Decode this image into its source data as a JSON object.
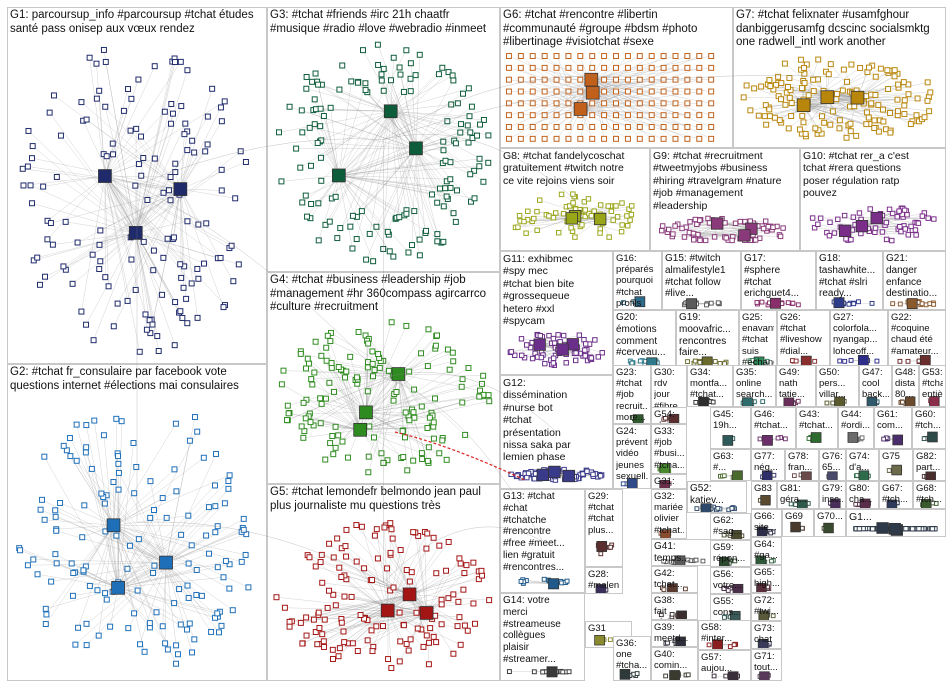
{
  "groups": [
    {
      "id": "G1",
      "label": "G1: parcoursup_info #parcoursup #tchat études\nsanté pass onisep aux vœux rendez",
      "color": "#1f2a6b",
      "kind": "hub"
    },
    {
      "id": "G2",
      "label": "G2: #tchat fr_consulaire par facebook vote\nquestions internet #élections mai consulaires",
      "color": "#1e6fb8",
      "kind": "hub"
    },
    {
      "id": "G3",
      "label": "G3: #tchat #friends #irc 21h chaatfr\n#musique #radio #love #webradio #inmeet",
      "color": "#0d5c3a",
      "kind": "ring"
    },
    {
      "id": "G4",
      "label": "G4: #tchat #business #leadership #job\n#management #hr 360compass agircarrco\n#culture #recruitment",
      "color": "#2e8b1f",
      "kind": "cluster"
    },
    {
      "id": "G5",
      "label": "G5: #tchat lemondefr belmondo jean paul\nplus journaliste mu questions très",
      "color": "#a31515",
      "kind": "hub"
    },
    {
      "id": "G6",
      "label": "G6: #tchat #rencontre #libertin\n#communauté #groupe #bdsm #photo\n#libertinage #visiotchat #sexe",
      "color": "#c0601a",
      "kind": "grid"
    },
    {
      "id": "G7",
      "label": "G7: #tchat felixnater #usamfghour\ndanbiggerusamfg dcscinc socialsmktg\none radwell_intl work another",
      "color": "#b8860b",
      "kind": "hub"
    },
    {
      "id": "G8",
      "label": "G8: #tchat fandelycoschat\ngratuitement #twitch notre\nce vite rejoins viens soir",
      "color": "#9aa61a",
      "kind": "hub"
    },
    {
      "id": "G9",
      "label": "G9: #tchat #recruitment\n#tweetmyjobs #business\n#hiring #travelgram #nature\n#job #management\n#leadership",
      "color": "#8a3a7a",
      "kind": "ring"
    },
    {
      "id": "G10",
      "label": "G10: #tchat rer_a c'est\ntchat #rera questions\nposer régulation ratp\npouvez",
      "color": "#7a2e8a",
      "kind": "hub"
    },
    {
      "id": "G11",
      "label": "G11: exhibmec\n#spy mec\n#tchat bien bite\n#grossequeue\nhetero #xxl\n#spycam",
      "color": "#6b2e8a",
      "kind": "cluster"
    },
    {
      "id": "G16",
      "label": "G16: préparés\npourquoi\n#tchat profils\nle_cidj...",
      "color": "#2e6b8a",
      "kind": "small"
    },
    {
      "id": "G15",
      "label": "G15: #twitch\nalmalifestyle1\n#tchat follow\n#live...",
      "color": "#5a5a5a",
      "kind": "small"
    },
    {
      "id": "G17",
      "label": "G17:\n#sphere\n#tchat\nerichguet4...",
      "color": "#8a2e6b",
      "kind": "small"
    },
    {
      "id": "G18",
      "label": "G18:\ntashawhite...\n#tchat #slri\nready...",
      "color": "#2e3a8a",
      "kind": "small"
    },
    {
      "id": "G21",
      "label": "G21:\ndanger\nenfance\ndestinatio...",
      "color": "#8a5a2e",
      "kind": "small"
    },
    {
      "id": "G20",
      "label": "G20:\némotions\ncomment\n#cerveau...",
      "color": "#2e7a8a",
      "kind": "small"
    },
    {
      "id": "G19",
      "label": "G19:\nmoovafric...\nrencontres\nfaire...",
      "color": "#6b6b2e",
      "kind": "small"
    },
    {
      "id": "G25",
      "label": "G25:\nenavantt...\n#tchat suis\n#échange...",
      "color": "#2e8a5a",
      "kind": "small"
    },
    {
      "id": "G26",
      "label": "G26:\n#tchat\n#liveshow\n#dial...",
      "color": "#8a2e2e",
      "kind": "small"
    },
    {
      "id": "G27",
      "label": "G27:\ncolorfola...\nnyangap...\nlohceoff...",
      "color": "#2e2e8a",
      "kind": "small"
    },
    {
      "id": "G22",
      "label": "G22:\n#coquine\nchaud été\n#amateur...",
      "color": "#6b2e2e",
      "kind": "small"
    },
    {
      "id": "G12",
      "label": "G12:\ndissémination\n#nurse bot\n#tchat\nprésentation\nnissa saka par\nlemien phase",
      "color": "#3a3a8a",
      "kind": "small"
    },
    {
      "id": "G23",
      "label": "G23:\n#tchat\n#job\nrecruit...\nmore...",
      "color": "#2e5a2e",
      "kind": "tiny"
    },
    {
      "id": "G30",
      "label": "G30:\nrdv\njour\n#fibre...",
      "color": "#5a2e8a",
      "kind": "tiny"
    },
    {
      "id": "G34",
      "label": "G34:\nmontfa...\n#tchat...",
      "color": "#2e2e2e",
      "kind": "tiny"
    },
    {
      "id": "G35",
      "label": "G35:\nonline\nsearch...",
      "color": "#2e6b6b",
      "kind": "tiny"
    },
    {
      "id": "G49",
      "label": "G49:\nnath\ntatie...",
      "color": "#6b2e5a",
      "kind": "tiny"
    },
    {
      "id": "G50",
      "label": "G50:\npers...\nvillar...",
      "color": "#5a5a2e",
      "kind": "tiny"
    },
    {
      "id": "G47",
      "label": "G47:\ncool\nback...",
      "color": "#2e5a6b",
      "kind": "tiny"
    },
    {
      "id": "G48",
      "label": "G48:\ndista...\n80...",
      "color": "#6b4a2e",
      "kind": "tiny"
    },
    {
      "id": "G53",
      "label": "G53:\n#tchat\nentiè...",
      "color": "#8a2e4a",
      "kind": "tiny"
    },
    {
      "id": "G24",
      "label": "G24:\nprévent...\nvidéo\njeunes\nsexuell...",
      "color": "#2e4a8a",
      "kind": "tiny"
    },
    {
      "id": "G33",
      "label": "G33:\n#job\n#busi...\n#tcha...",
      "color": "#4a8a2e",
      "kind": "tiny"
    },
    {
      "id": "G54",
      "label": "G54:\nn'ai...",
      "color": "#5a2e2e",
      "kind": "tiny"
    },
    {
      "id": "G45",
      "label": "G45:\n19h...",
      "color": "#2e5a5a",
      "kind": "tiny"
    },
    {
      "id": "G46",
      "label": "G46:\n#tchat...",
      "color": "#6b2e6b",
      "kind": "tiny"
    },
    {
      "id": "G43",
      "label": "G43:\n#tchat...",
      "color": "#2e6b2e",
      "kind": "tiny"
    },
    {
      "id": "G44",
      "label": "G44:\n#ordi...",
      "color": "#6b6b6b",
      "kind": "tiny"
    },
    {
      "id": "G61",
      "label": "G61:\ncom...",
      "color": "#4a2e6b",
      "kind": "tiny"
    },
    {
      "id": "G60",
      "label": "G60:\n#tch...",
      "color": "#2e4a4a",
      "kind": "tiny"
    },
    {
      "id": "G31a",
      "label": "G31:\n#bina...",
      "color": "#6b2e4a",
      "kind": "tiny"
    },
    {
      "id": "G63",
      "label": "G63:\n#...",
      "color": "#4a6b2e",
      "kind": "tiny"
    },
    {
      "id": "G77",
      "label": "G77:\nnég...",
      "color": "#2e2e6b",
      "kind": "tiny"
    },
    {
      "id": "G78",
      "label": "G78:\nfran...",
      "color": "#6b4a4a",
      "kind": "tiny"
    },
    {
      "id": "G76",
      "label": "G76:\n65...",
      "color": "#4a4a6b",
      "kind": "tiny"
    },
    {
      "id": "G74",
      "label": "G74:\nd'a...",
      "color": "#2e6b4a",
      "kind": "tiny"
    },
    {
      "id": "G75",
      "label": "G75",
      "color": "#6b6b4a",
      "kind": "tiny"
    },
    {
      "id": "G82",
      "label": "G82:\npart...",
      "color": "#4a2e2e",
      "kind": "tiny"
    },
    {
      "id": "G32",
      "label": "G32:\nmariée\nolivier\n#tchat...",
      "color": "#8a4a2e",
      "kind": "tiny"
    },
    {
      "id": "G52",
      "label": "G52:\nkatiev...",
      "color": "#2e4a6b",
      "kind": "tiny"
    },
    {
      "id": "G83",
      "label": "G83",
      "color": "#5a4a2e",
      "kind": "tiny"
    },
    {
      "id": "G81",
      "label": "G81:\ngéra...",
      "color": "#2e5a4a",
      "kind": "tiny"
    },
    {
      "id": "G79",
      "label": "G79:\ninsc...",
      "color": "#4a2e5a",
      "kind": "tiny"
    },
    {
      "id": "G80",
      "label": "G80:\ncha...",
      "color": "#5a2e4a",
      "kind": "tiny"
    },
    {
      "id": "G67",
      "label": "G67:\n#tch...",
      "color": "#2e3a5a",
      "kind": "tiny"
    },
    {
      "id": "G68",
      "label": "G68:\n#tch...",
      "color": "#3a5a2e",
      "kind": "tiny"
    },
    {
      "id": "G13",
      "label": "G13: #tchat\n#chat\n#tchatche\n#rencontre\n#free #meet...\nlien #gratuit\n#rencontres...",
      "color": "#1f5a8a",
      "kind": "small"
    },
    {
      "id": "G29",
      "label": "G29:\n#tchat\n#tchat\nplus...",
      "color": "#5a2e2e",
      "kind": "tiny"
    },
    {
      "id": "G37",
      "label": "G37:\n#tchat\ncomp...",
      "color": "#2e5a5a",
      "kind": "tiny"
    },
    {
      "id": "G41",
      "label": "G41:\ntemps...",
      "color": "#5a5a5a",
      "kind": "tiny"
    },
    {
      "id": "G62",
      "label": "G62:\n#sag...",
      "color": "#4a4a2e",
      "kind": "tiny"
    },
    {
      "id": "G59",
      "label": "G59:\nrépon...",
      "color": "#2e4a2e",
      "kind": "tiny"
    },
    {
      "id": "G56",
      "label": "G56:\nvotre...",
      "color": "#4a2e4a",
      "kind": "tiny"
    },
    {
      "id": "G66",
      "label": "G66:\nsite...",
      "color": "#2e2e4a",
      "kind": "tiny"
    },
    {
      "id": "G69",
      "label": "G69",
      "color": "#4a3a2e",
      "kind": "tiny"
    },
    {
      "id": "G70",
      "label": "G70...",
      "color": "#3a4a2e",
      "kind": "tiny"
    },
    {
      "id": "G1x",
      "label": "G1...",
      "color": "#2e3a4a",
      "kind": "tiny"
    },
    {
      "id": "G28",
      "label": "G28:\n#malen...\nservices\n#sourd...",
      "color": "#3a2e5a",
      "kind": "tiny"
    },
    {
      "id": "G42",
      "label": "G42:\ntchat...",
      "color": "#5a3a2e",
      "kind": "tiny"
    },
    {
      "id": "G64",
      "label": "G64:\n#ga...",
      "color": "#2e5a3a",
      "kind": "tiny"
    },
    {
      "id": "G65",
      "label": "G65:\nhigh...",
      "color": "#5a2e3a",
      "kind": "tiny"
    },
    {
      "id": "G55",
      "label": "G55:\ncons...",
      "color": "#3a5a5a",
      "kind": "tiny"
    },
    {
      "id": "G72",
      "label": "G72:\n#twi...",
      "color": "#5a5a3a",
      "kind": "tiny"
    },
    {
      "id": "G73",
      "label": "G73:\nchat",
      "color": "#3a3a5a",
      "kind": "tiny"
    },
    {
      "id": "G71",
      "label": "G71:\ntout...",
      "color": "#5a3a5a",
      "kind": "tiny"
    },
    {
      "id": "G14",
      "label": "G14: votre\nmerci\n#streameuse\ncollègues\nplaisir\n#streamer...",
      "color": "#3a3a3a",
      "kind": "small"
    },
    {
      "id": "G31b",
      "label": "G31",
      "color": "#8a8a2e",
      "kind": "tiny"
    },
    {
      "id": "G36",
      "label": "G36:\none\n#tcha...",
      "color": "#2e3a3a",
      "kind": "tiny"
    },
    {
      "id": "G38",
      "label": "G38:\nfait\nufab4...",
      "color": "#3a2e2e",
      "kind": "tiny"
    },
    {
      "id": "G39",
      "label": "G39:\nmeetd...",
      "color": "#2e2e3a",
      "kind": "tiny"
    },
    {
      "id": "G40",
      "label": "G40:\ncomin...",
      "color": "#3a3a2e",
      "kind": "tiny"
    },
    {
      "id": "G58",
      "label": "G58:\n#inter...",
      "color": "#8a1e1e",
      "kind": "tiny"
    },
    {
      "id": "G57",
      "label": "G57:\naujou...",
      "color": "#3a2e3a",
      "kind": "tiny"
    }
  ]
}
